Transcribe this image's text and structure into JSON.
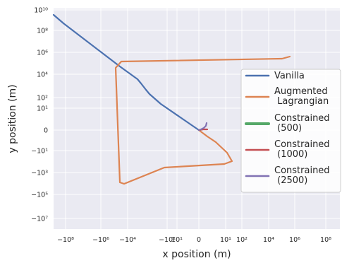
{
  "chart_data": {
    "type": "line",
    "xlabel": "x position (m)",
    "ylabel": "y position (m)",
    "x_scale": "symlog",
    "y_scale": "symlog",
    "xlim": [
      -1000000000,
      1000000000
    ],
    "ylim": [
      -100000000,
      10000000000
    ],
    "grid": true,
    "legend_position": "center-right",
    "x_ticks": [
      {
        "value": -100000000,
        "label": "−10⁸"
      },
      {
        "value": -1000000,
        "label": "−10⁶"
      },
      {
        "value": -10000,
        "label": "−10⁴"
      },
      {
        "value": -100,
        "label": "−10²"
      },
      {
        "value": 10,
        "label": "10¹"
      },
      {
        "value": 0,
        "label": "0"
      },
      {
        "value": 10,
        "label": "10¹"
      },
      {
        "value": 100,
        "label": "10²"
      },
      {
        "value": 10000,
        "label": "10⁴"
      },
      {
        "value": 1000000,
        "label": "10⁶"
      },
      {
        "value": 100000000,
        "label": "10⁸"
      }
    ],
    "y_ticks": [
      {
        "value": 10000000000,
        "label": "10¹⁰"
      },
      {
        "value": 100000000,
        "label": "10⁸"
      },
      {
        "value": 1000000,
        "label": "10⁶"
      },
      {
        "value": 10000,
        "label": "10⁴"
      },
      {
        "value": 100,
        "label": "10²"
      },
      {
        "value": 10,
        "label": "10¹"
      },
      {
        "value": 0,
        "label": "0"
      },
      {
        "value": -10,
        "label": "−10¹"
      },
      {
        "value": -1000,
        "label": "−10³"
      },
      {
        "value": -100000,
        "label": "−10⁵"
      },
      {
        "value": -10000000,
        "label": "−10⁷"
      }
    ],
    "series": [
      {
        "name": "Vanilla",
        "color": "#4c72b0",
        "points": [
          [
            -1000000000,
            1000000000
          ],
          [
            -100000000,
            100000000
          ],
          [
            -10000000,
            10000000
          ],
          [
            -1000000,
            1000000
          ],
          [
            -100000,
            100000
          ],
          [
            -30000,
            30000
          ],
          [
            -10000,
            5000
          ],
          [
            -3000,
            1000
          ],
          [
            -1000,
            200
          ],
          [
            -300,
            60
          ],
          [
            -100,
            20
          ],
          [
            -30,
            10
          ],
          [
            -10,
            3
          ],
          [
            -3,
            1
          ],
          [
            -1,
            0.3
          ],
          [
            0,
            0
          ]
        ]
      },
      {
        "name": "Augmented\n Lagrangian",
        "color": "#dd8452",
        "points": [
          [
            3000000,
            500000
          ],
          [
            1000000,
            250000
          ],
          [
            -50000,
            20000
          ],
          [
            -100000,
            5000
          ],
          [
            -100000,
            -300000
          ],
          [
            -50000,
            -400000
          ],
          [
            -1000,
            -4000
          ],
          [
            5,
            -2000
          ],
          [
            20,
            -1000
          ],
          [
            20,
            -100
          ],
          [
            10,
            -30
          ],
          [
            3,
            -10
          ],
          [
            0,
            0
          ]
        ]
      },
      {
        "name": "Constrained\n (500)",
        "color": "#55a868",
        "points": [
          [
            0,
            0
          ],
          [
            0.5,
            0.1
          ]
        ]
      },
      {
        "name": "Constrained\n (1000)",
        "color": "#c44e52",
        "points": [
          [
            0,
            0
          ],
          [
            0.6,
            0.05
          ],
          [
            1.5,
            0
          ]
        ]
      },
      {
        "name": "Constrained\n (2500)",
        "color": "#8172b3",
        "points": [
          [
            0,
            0
          ],
          [
            0.3,
            0.2
          ],
          [
            0.8,
            0.6
          ],
          [
            1.3,
            1
          ],
          [
            1.6,
            1.6
          ],
          [
            1.8,
            2
          ]
        ]
      }
    ]
  }
}
